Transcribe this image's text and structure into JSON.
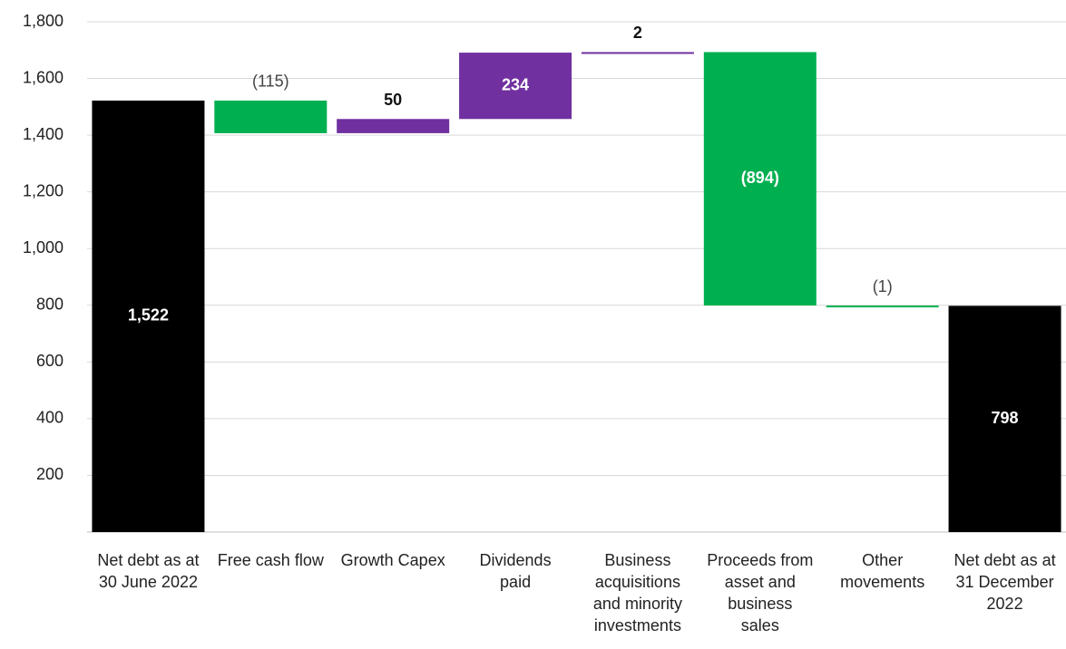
{
  "chart_data": {
    "type": "waterfall",
    "categories": [
      "Net debt as at 30 June 2022",
      "Free cash flow",
      "Growth Capex",
      "Dividends paid",
      "Business acquisitions and minority investments",
      "Proceeds from asset and business sales",
      "Other movements",
      "Net debt as at 31 December 2022"
    ],
    "values": [
      1522,
      -115,
      50,
      234,
      2,
      -894,
      -1,
      798
    ],
    "value_labels": [
      "1,522",
      "(115)",
      "50",
      "234",
      "2",
      "(894)",
      "(1)",
      "798"
    ],
    "totals": [
      true,
      false,
      false,
      false,
      false,
      false,
      false,
      true
    ],
    "colors": [
      "#000000",
      "#00b050",
      "#7030a0",
      "#7030a0",
      "#7030a0",
      "#00b050",
      "#00b050",
      "#000000"
    ],
    "ylim": [
      0,
      1800
    ],
    "yticks": [
      200,
      400,
      600,
      800,
      {
        "value": 1000,
        "label": "1,000"
      },
      {
        "value": 1200,
        "label": "1,200"
      },
      {
        "value": 1400,
        "label": "1,400"
      },
      {
        "value": 1600,
        "label": "1,600"
      },
      {
        "value": 1800,
        "label": "1,800"
      }
    ],
    "grid": true
  }
}
